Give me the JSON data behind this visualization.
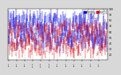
{
  "title": "Milwaukee Weather Outdoor Humidity At Daily High Temperature (Past Year)",
  "background_color": "#d8d8d8",
  "plot_bg_color": "#ffffff",
  "ylim": [
    10,
    100
  ],
  "ytick_values": [
    20,
    30,
    40,
    50,
    60,
    70,
    80,
    90,
    100
  ],
  "ytick_labels": [
    "20",
    "30",
    "40",
    "50",
    "60",
    "70",
    "80",
    "90",
    "100"
  ],
  "num_days": 365,
  "blue_color": "#0000dd",
  "red_color": "#dd0000",
  "grid_color": "#999999",
  "legend_blue_label": "Humidity",
  "legend_red_label": "Dew Pt"
}
